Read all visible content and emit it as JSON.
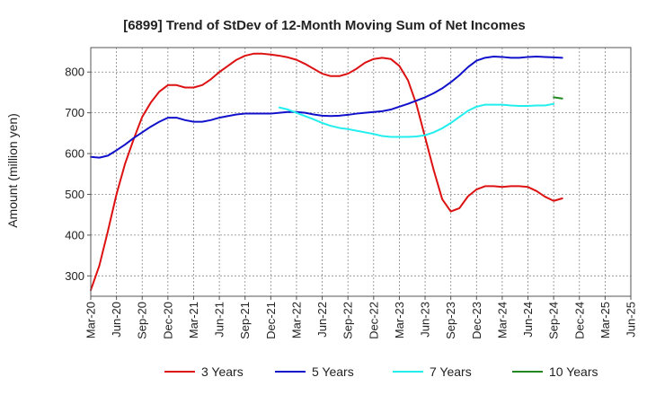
{
  "chart_data": {
    "type": "line",
    "title": "[6899]  Trend of StDev of 12-Month Moving Sum of Net Incomes",
    "ylabel": "Amount (million yen)",
    "xlabel": "",
    "ylim": [
      250,
      860
    ],
    "yticks": [
      300,
      400,
      500,
      600,
      700,
      800
    ],
    "xticks": [
      "Mar-20",
      "Jun-20",
      "Sep-20",
      "Dec-20",
      "Mar-21",
      "Jun-21",
      "Sep-21",
      "Dec-21",
      "Mar-22",
      "Jun-22",
      "Sep-22",
      "Dec-22",
      "Mar-23",
      "Jun-23",
      "Sep-23",
      "Dec-23",
      "Mar-24",
      "Jun-24",
      "Sep-24",
      "Dec-24",
      "Mar-25",
      "Jun-25"
    ],
    "grid": true,
    "legend_position": "bottom",
    "series": [
      {
        "name": "3 Years",
        "color": "#dd1111",
        "start_index": 0,
        "values": [
          265,
          325,
          410,
          500,
          575,
          635,
          690,
          725,
          752,
          768,
          768,
          762,
          762,
          768,
          782,
          800,
          815,
          830,
          840,
          845,
          845,
          843,
          840,
          836,
          830,
          820,
          808,
          796,
          790,
          790,
          796,
          808,
          823,
          832,
          835,
          832,
          815,
          780,
          720,
          640,
          560,
          488,
          458,
          466,
          495,
          512,
          520,
          520,
          518,
          520,
          520,
          518,
          508,
          494,
          484,
          490
        ]
      },
      {
        "name": "5 Years",
        "color": "#1111cc",
        "start_index": 0,
        "values": [
          592,
          590,
          595,
          608,
          622,
          638,
          652,
          666,
          678,
          688,
          688,
          682,
          678,
          678,
          682,
          688,
          692,
          696,
          698,
          698,
          698,
          698,
          700,
          702,
          702,
          700,
          696,
          693,
          692,
          693,
          695,
          698,
          700,
          702,
          704,
          708,
          715,
          722,
          730,
          738,
          748,
          760,
          775,
          792,
          812,
          828,
          835,
          838,
          837,
          835,
          835,
          837,
          838,
          837,
          836,
          835
        ]
      },
      {
        "name": "7 Years",
        "color": "#22eeee",
        "start_index": 22,
        "values": [
          713,
          708,
          700,
          692,
          684,
          675,
          668,
          663,
          660,
          656,
          652,
          648,
          643,
          641,
          641,
          641,
          642,
          645,
          652,
          662,
          675,
          690,
          705,
          715,
          720,
          720,
          720,
          718,
          717,
          717,
          718,
          718,
          722
        ]
      },
      {
        "name": "10 Years",
        "color": "#228822",
        "start_index": 54,
        "values": [
          738,
          735
        ]
      }
    ]
  }
}
